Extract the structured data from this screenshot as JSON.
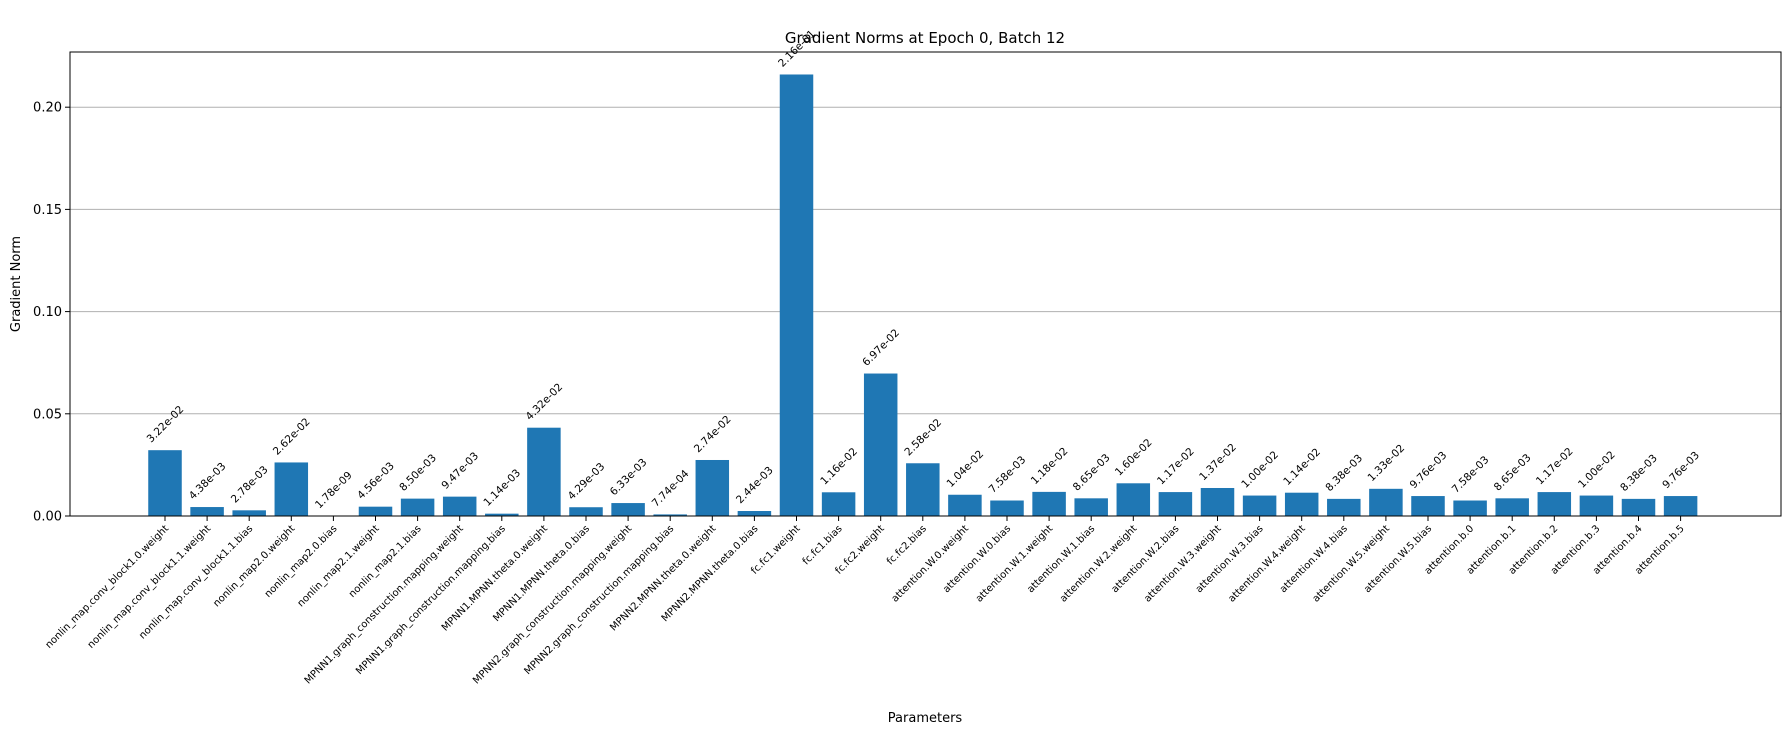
{
  "chart_data": {
    "type": "bar",
    "title": "Gradient Norms at Epoch 0, Batch 12",
    "xlabel": "Parameters",
    "ylabel": "Gradient Norm",
    "ylim": [
      0,
      0.227
    ],
    "yticks": [
      0.0,
      0.05,
      0.1,
      0.15,
      0.2
    ],
    "ytick_labels": [
      "0.00",
      "0.05",
      "0.10",
      "0.15",
      "0.20"
    ],
    "grid": "y",
    "bar_color": "#1f77b4",
    "categories": [
      "nonlin_map.conv_block1.0.weight",
      "nonlin_map.conv_block1.1.weight",
      "nonlin_map.conv_block1.1.bias",
      "nonlin_map2.0.weight",
      "nonlin_map2.0.bias",
      "nonlin_map2.1.weight",
      "nonlin_map2.1.bias",
      "MPNN1.graph_construction.mapping.weight",
      "MPNN1.graph_construction.mapping.bias",
      "MPNN1.MPNN.theta.0.weight",
      "MPNN1.MPNN.theta.0.bias",
      "MPNN2.graph_construction.mapping.weight",
      "MPNN2.graph_construction.mapping.bias",
      "MPNN2.MPNN.theta.0.weight",
      "MPNN2.MPNN.theta.0.bias",
      "fc.fc1.weight",
      "fc.fc1.bias",
      "fc.fc2.weight",
      "fc.fc2.bias",
      "attention.W.0.weight",
      "attention.W.0.bias",
      "attention.W.1.weight",
      "attention.W.1.bias",
      "attention.W.2.weight",
      "attention.W.2.bias",
      "attention.W.3.weight",
      "attention.W.3.bias",
      "attention.W.4.weight",
      "attention.W.4.bias",
      "attention.W.5.weight",
      "attention.W.5.bias",
      "attention.b.0",
      "attention.b.1",
      "attention.b.2",
      "attention.b.3",
      "attention.b.4",
      "attention.b.5"
    ],
    "values": [
      0.0322,
      0.00438,
      0.00278,
      0.0262,
      1.78e-09,
      0.00456,
      0.0085,
      0.00947,
      0.00114,
      0.0432,
      0.00429,
      0.00633,
      0.000774,
      0.0274,
      0.00244,
      0.216,
      0.0116,
      0.0697,
      0.0258,
      0.0104,
      0.00758,
      0.0118,
      0.00865,
      0.016,
      0.0117,
      0.0137,
      0.01,
      0.0114,
      0.00838,
      0.0133,
      0.00976,
      0.00758,
      0.00865,
      0.0117,
      0.01,
      0.00838,
      0.00976
    ],
    "value_labels": [
      "3.22e-02",
      "4.38e-03",
      "2.78e-03",
      "2.62e-02",
      "1.78e-09",
      "4.56e-03",
      "8.50e-03",
      "9.47e-03",
      "1.14e-03",
      "4.32e-02",
      "4.29e-03",
      "6.33e-03",
      "7.74e-04",
      "2.74e-02",
      "2.44e-03",
      "2.16e-01",
      "1.16e-02",
      "6.97e-02",
      "2.58e-02",
      "1.04e-02",
      "7.58e-03",
      "1.18e-02",
      "8.65e-03",
      "1.60e-02",
      "1.17e-02",
      "1.37e-02",
      "1.00e-02",
      "1.14e-02",
      "8.38e-03",
      "1.33e-02",
      "9.76e-03",
      "7.58e-03",
      "8.65e-03",
      "1.17e-02",
      "1.00e-02",
      "8.38e-03",
      "9.76e-03"
    ]
  }
}
